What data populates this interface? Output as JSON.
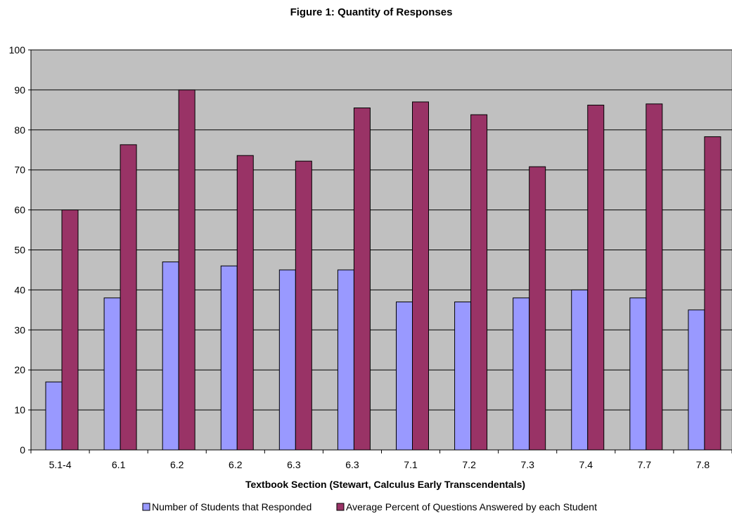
{
  "chart_data": {
    "type": "bar",
    "title": "Figure 1: Quantity of Responses",
    "xlabel": "Textbook Section (Stewart, Calculus Early Transcendentals)",
    "ylabel": "",
    "categories": [
      "5.1-4",
      "6.1",
      "6.2",
      "6.2",
      "6.3",
      "6.3",
      "7.1",
      "7.2",
      "7.3",
      "7.4",
      "7.7",
      "7.8"
    ],
    "series": [
      {
        "name": "Number of Students that Responded",
        "color": "#9999ff",
        "values": [
          17,
          38,
          47,
          46,
          45,
          45,
          37,
          37,
          38,
          40,
          38,
          35
        ]
      },
      {
        "name": "Average Percent of Questions Answered by each Student",
        "color": "#993366",
        "values": [
          60,
          76.3,
          90,
          73.6,
          72.2,
          85.5,
          87,
          83.8,
          70.8,
          86.2,
          86.5,
          78.3
        ]
      }
    ],
    "ylim": [
      0,
      100
    ],
    "yticks": [
      0,
      10,
      20,
      30,
      40,
      50,
      60,
      70,
      80,
      90,
      100
    ],
    "grid": true,
    "legend_position": "bottom",
    "colors": {
      "plot_background": "#c0c0c0",
      "gridline": "#000000"
    }
  }
}
